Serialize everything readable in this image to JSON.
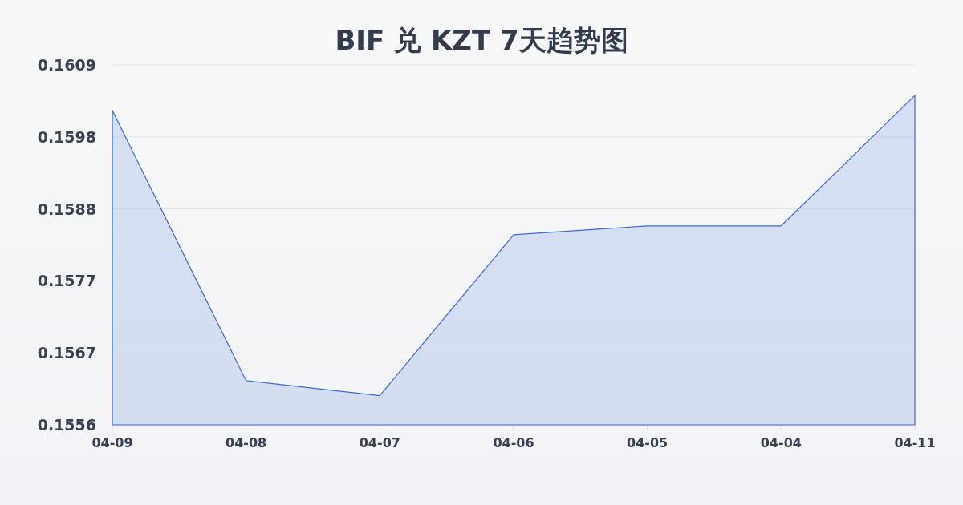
{
  "chart_data": {
    "type": "area",
    "title": "BIF 兑 KZT 7天趋势图",
    "categories": [
      "04-09",
      "04-08",
      "04-07",
      "04-06",
      "04-05",
      "04-04",
      "04-11"
    ],
    "series": [
      {
        "color": "#3a6bd4",
        "values": [
          0.16023,
          0.15625,
          0.15603,
          0.1584,
          0.15853,
          0.15853,
          0.16045
        ]
      }
    ],
    "ylim": [
      0.1556,
      0.1609
    ],
    "yticks": [
      {
        "value": 0.1556,
        "label": "0.1556"
      },
      {
        "value": 0.15666,
        "label": "0.1567"
      },
      {
        "value": 0.15772,
        "label": "0.1577"
      },
      {
        "value": 0.15878,
        "label": "0.1588"
      },
      {
        "value": 0.15984,
        "label": "0.1598"
      },
      {
        "value": 0.1609,
        "label": "0.1609"
      }
    ],
    "grid": "y"
  }
}
